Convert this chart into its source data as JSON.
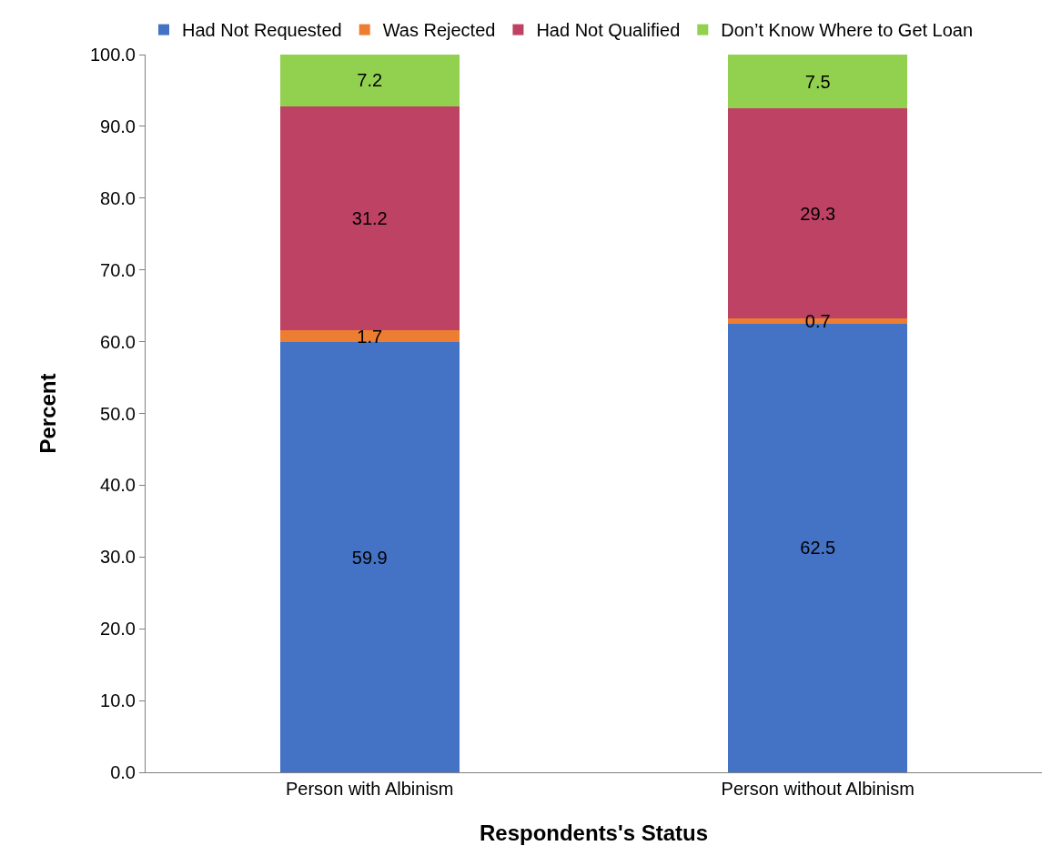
{
  "chart_data": {
    "type": "bar",
    "stacked": true,
    "xlabel": "Respondents's Status",
    "ylabel": "Percent",
    "categories": [
      "Person with Albinism",
      "Person without Albinism"
    ],
    "series": [
      {
        "name": "Had Not Requested",
        "color": "#4472c4",
        "values": [
          59.9,
          62.5
        ]
      },
      {
        "name": "Was Rejected",
        "color": "#ed7d31",
        "values": [
          1.7,
          0.7
        ]
      },
      {
        "name": "Had Not Qualified",
        "color": "#be4264",
        "values": [
          31.2,
          29.3
        ]
      },
      {
        "name": "Don’t Know Where to Get Loan",
        "color": "#92d050",
        "values": [
          7.2,
          7.5
        ]
      }
    ],
    "ylim": [
      0,
      100
    ],
    "yticks": [
      {
        "value": 0,
        "label": "0.0"
      },
      {
        "value": 10,
        "label": "10.0"
      },
      {
        "value": 20,
        "label": "20.0"
      },
      {
        "value": 30,
        "label": "30.0"
      },
      {
        "value": 40,
        "label": "40.0"
      },
      {
        "value": 50,
        "label": "50.0"
      },
      {
        "value": 60,
        "label": "60.0"
      },
      {
        "value": 70,
        "label": "70.0"
      },
      {
        "value": 80,
        "label": "80.0"
      },
      {
        "value": 90,
        "label": "90.0"
      },
      {
        "value": 100,
        "label": "100.0"
      }
    ],
    "grid": false,
    "legend": "top",
    "data_labels": true
  }
}
